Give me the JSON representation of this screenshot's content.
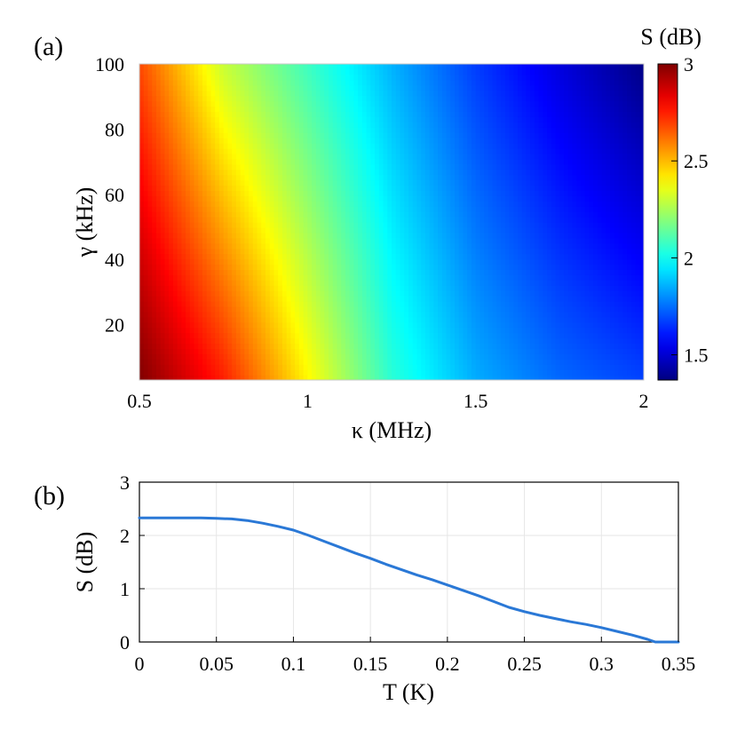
{
  "chart_data": [
    {
      "panel_label": "(a)",
      "type": "heatmap",
      "xlabel": "κ (MHz)",
      "ylabel": "γ (kHz)",
      "colorbar_label": "S (dB)",
      "xlim": [
        0.5,
        2
      ],
      "ylim": [
        3,
        100
      ],
      "x_ticks": [
        "0.5",
        "1",
        "1.5",
        "2"
      ],
      "y_ticks": [
        "20",
        "40",
        "60",
        "80",
        "100"
      ],
      "colorbar_range": [
        1.37,
        3.0
      ],
      "colorbar_ticks": [
        "1.5",
        "2",
        "2.5",
        "3"
      ],
      "colormap": "jet",
      "description_values": {
        "kappa_MHz": [
          0.5,
          0.75,
          1.0,
          1.25,
          1.5,
          1.75,
          2.0
        ],
        "S_dB_at_gamma_3kHz": [
          3.0,
          2.75,
          2.4,
          2.05,
          1.85,
          1.74,
          1.68
        ],
        "S_dB_at_gamma_100kHz": [
          2.68,
          2.3,
          2.08,
          1.86,
          1.67,
          1.52,
          1.38
        ]
      }
    },
    {
      "panel_label": "(b)",
      "type": "line",
      "xlabel": "T (K)",
      "ylabel": "S (dB)",
      "xlim": [
        0,
        0.35
      ],
      "ylim": [
        0,
        3
      ],
      "x_ticks": [
        "0",
        "0.05",
        "0.1",
        "0.15",
        "0.2",
        "0.25",
        "0.3",
        "0.35"
      ],
      "y_ticks": [
        "0",
        "1",
        "2",
        "3"
      ],
      "grid": true,
      "line_color": "#2a78d6",
      "x": [
        0,
        0.02,
        0.04,
        0.05,
        0.06,
        0.07,
        0.08,
        0.09,
        0.1,
        0.11,
        0.12,
        0.13,
        0.14,
        0.15,
        0.16,
        0.17,
        0.18,
        0.19,
        0.2,
        0.21,
        0.22,
        0.23,
        0.24,
        0.25,
        0.26,
        0.27,
        0.28,
        0.29,
        0.3,
        0.31,
        0.32,
        0.33,
        0.335,
        0.34,
        0.35
      ],
      "y": [
        2.33,
        2.33,
        2.33,
        2.32,
        2.31,
        2.28,
        2.23,
        2.17,
        2.1,
        2.0,
        1.89,
        1.78,
        1.67,
        1.57,
        1.46,
        1.36,
        1.26,
        1.17,
        1.07,
        0.97,
        0.87,
        0.76,
        0.65,
        0.57,
        0.5,
        0.44,
        0.38,
        0.33,
        0.27,
        0.2,
        0.13,
        0.05,
        0.0,
        0.0,
        0.0
      ]
    }
  ]
}
